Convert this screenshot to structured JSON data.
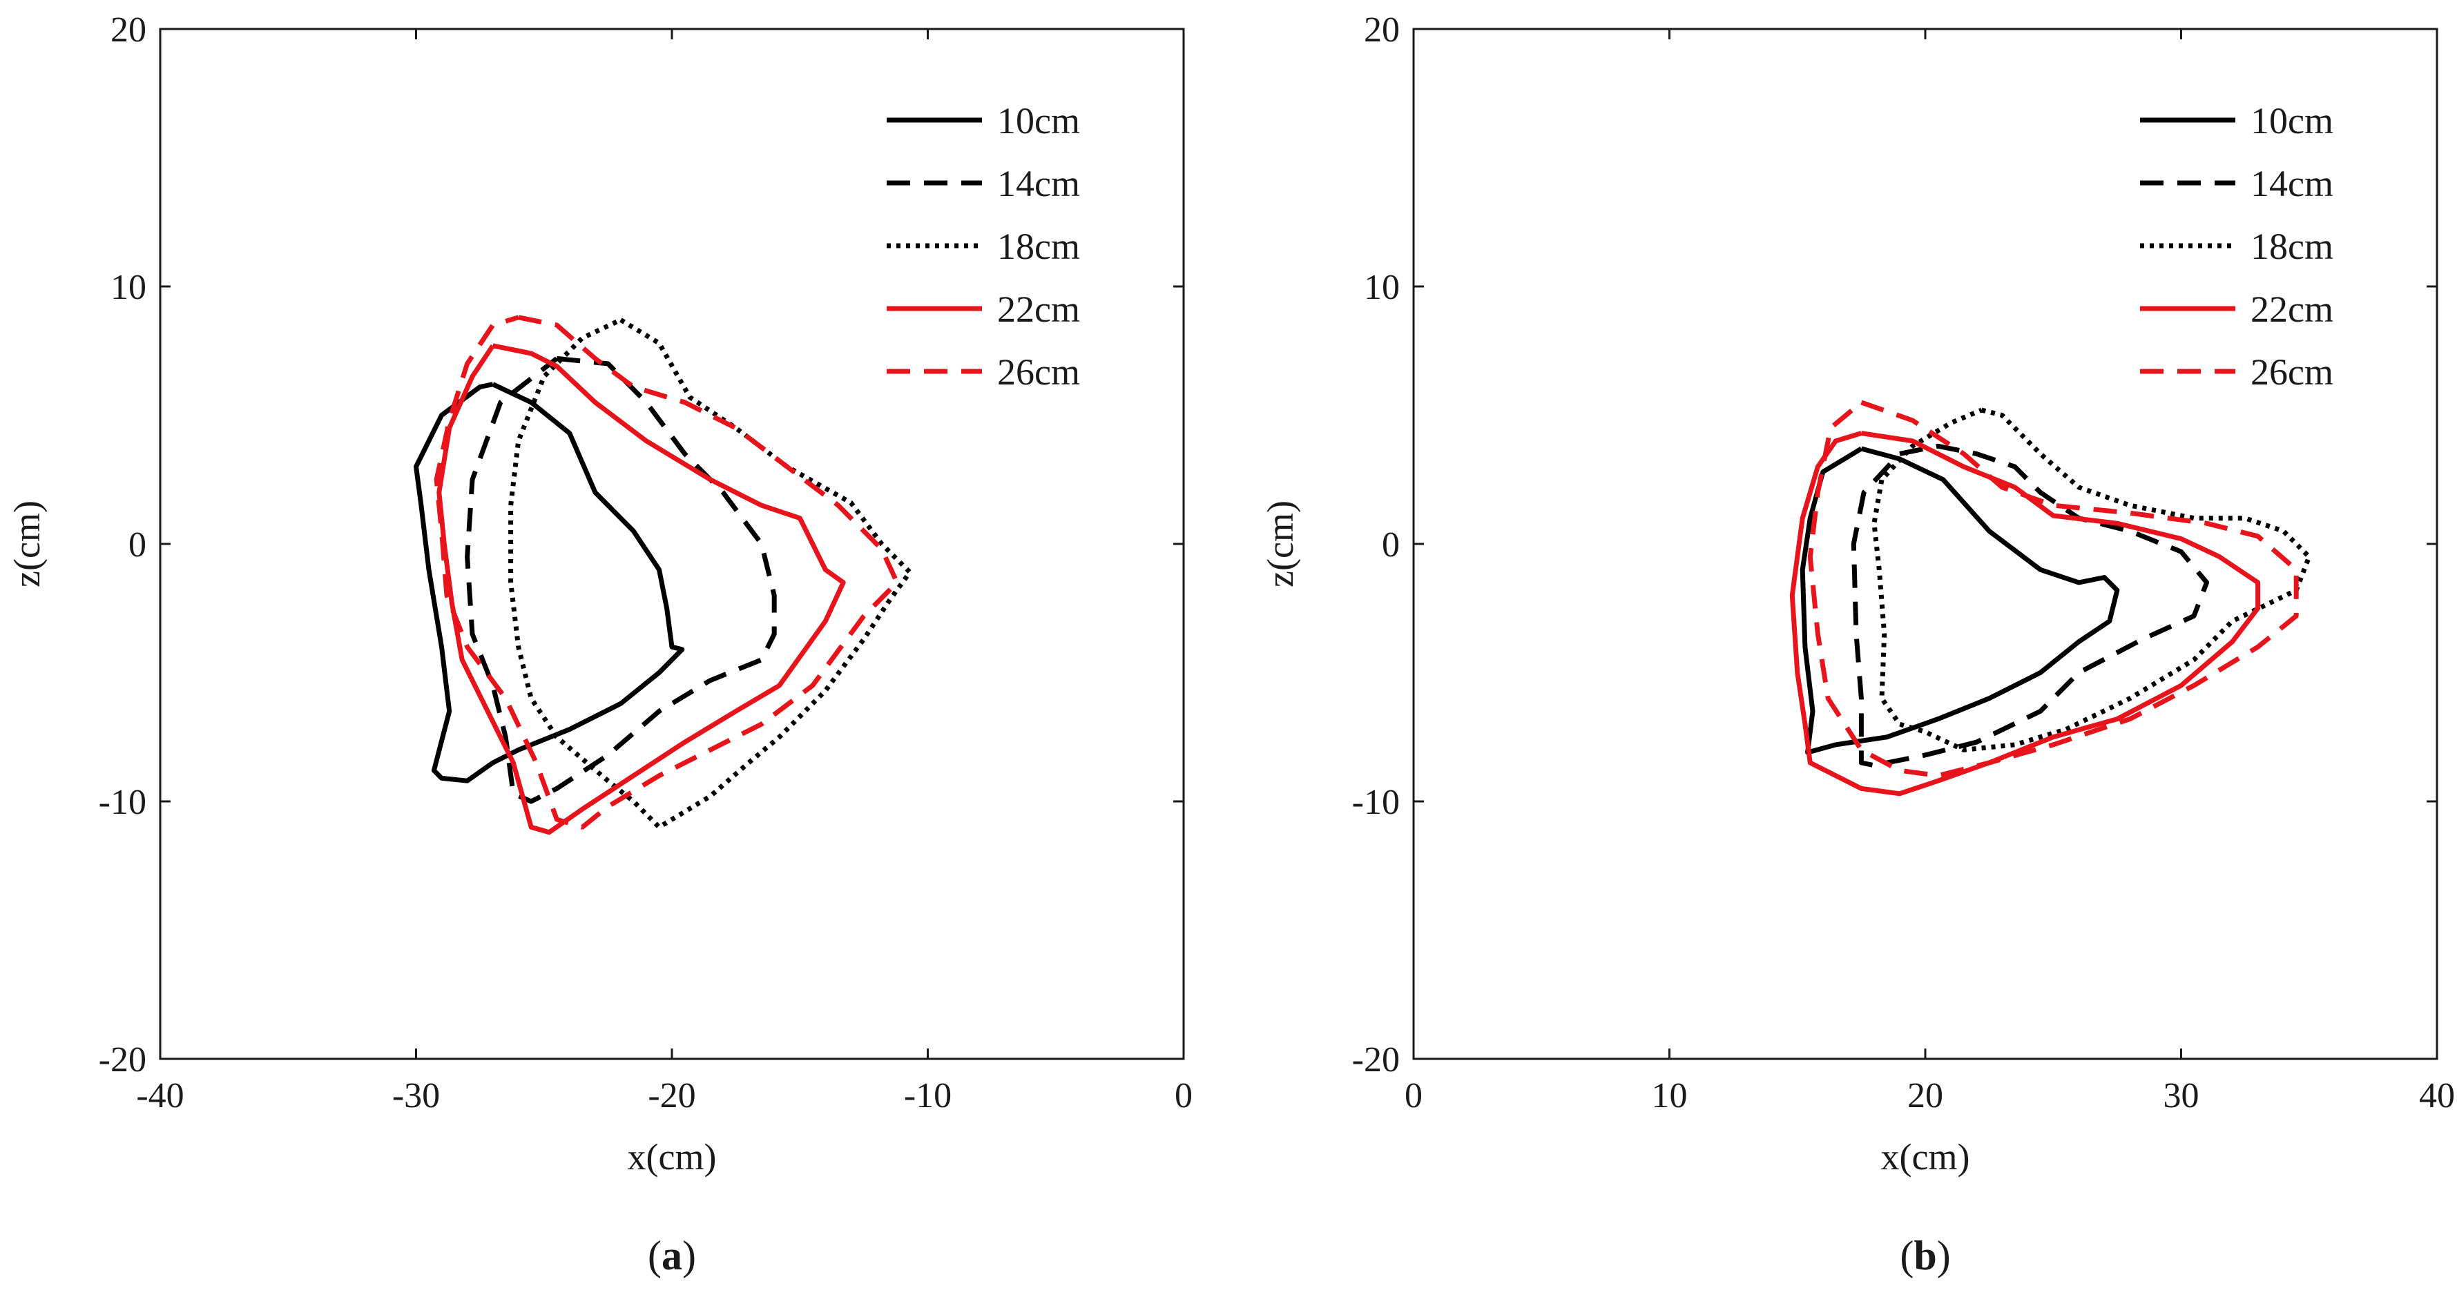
{
  "chart_data": [
    {
      "type": "line",
      "panel_label": {
        "open": "(",
        "letter": "a",
        "close": ")"
      },
      "xlabel": "x(cm)",
      "ylabel": "z(cm)",
      "xlim": [
        -40,
        0
      ],
      "ylim": [
        -20,
        20
      ],
      "xticks": [
        -40,
        -30,
        -20,
        -10,
        0
      ],
      "yticks": [
        -20,
        -10,
        0,
        10,
        20
      ],
      "grid": false,
      "legend_position": "top-right",
      "series": [
        {
          "name": "10cm",
          "color": "#000000",
          "dash": "solid",
          "points": [
            [
              -27,
              6.2
            ],
            [
              -25.5,
              5.5
            ],
            [
              -24,
              4.3
            ],
            [
              -23,
              2
            ],
            [
              -21.5,
              0.5
            ],
            [
              -20.5,
              -1
            ],
            [
              -20.2,
              -2.5
            ],
            [
              -20,
              -4
            ],
            [
              -19.6,
              -4.1
            ],
            [
              -20.5,
              -5
            ],
            [
              -22,
              -6.2
            ],
            [
              -24,
              -7.2
            ],
            [
              -26,
              -8
            ],
            [
              -27,
              -8.5
            ],
            [
              -28,
              -9.2
            ],
            [
              -29,
              -9.1
            ],
            [
              -29.3,
              -8.8
            ],
            [
              -28.7,
              -6.5
            ],
            [
              -29,
              -4
            ],
            [
              -29.5,
              -1
            ],
            [
              -29.8,
              1.5
            ],
            [
              -30,
              3
            ],
            [
              -29,
              5
            ],
            [
              -27.5,
              6.1
            ],
            [
              -27,
              6.2
            ]
          ]
        },
        {
          "name": "14cm",
          "color": "#000000",
          "dash": "dash",
          "points": [
            [
              -24.5,
              7.2
            ],
            [
              -22.5,
              7
            ],
            [
              -21,
              5.5
            ],
            [
              -19.5,
              3.5
            ],
            [
              -18,
              2
            ],
            [
              -16.5,
              0
            ],
            [
              -16,
              -2
            ],
            [
              -16,
              -3.5
            ],
            [
              -16.5,
              -4.5
            ],
            [
              -18.5,
              -5.3
            ],
            [
              -20.5,
              -6.5
            ],
            [
              -22.5,
              -8.2
            ],
            [
              -24.5,
              -9.5
            ],
            [
              -25.5,
              -10
            ],
            [
              -26.2,
              -9.7
            ],
            [
              -26.5,
              -7.5
            ],
            [
              -27,
              -5.5
            ],
            [
              -27.8,
              -3.5
            ],
            [
              -28,
              -0.5
            ],
            [
              -27.8,
              2.5
            ],
            [
              -26.7,
              5.5
            ],
            [
              -24.5,
              7.2
            ]
          ]
        },
        {
          "name": "18cm",
          "color": "#000000",
          "dash": "dot",
          "points": [
            [
              -22,
              8.7
            ],
            [
              -20.5,
              7.8
            ],
            [
              -19.3,
              5.7
            ],
            [
              -17.5,
              4.5
            ],
            [
              -15.5,
              3
            ],
            [
              -13,
              1.6
            ],
            [
              -11.8,
              0
            ],
            [
              -10.7,
              -1.1
            ],
            [
              -11.5,
              -2.2
            ],
            [
              -12.5,
              -3.7
            ],
            [
              -14,
              -5.7
            ],
            [
              -15.8,
              -7.5
            ],
            [
              -17,
              -8.5
            ],
            [
              -18.5,
              -9.8
            ],
            [
              -20.5,
              -11
            ],
            [
              -21.5,
              -10
            ],
            [
              -22.5,
              -9.2
            ],
            [
              -24.5,
              -7.5
            ],
            [
              -25.5,
              -6
            ],
            [
              -26,
              -4
            ],
            [
              -26.3,
              -1.5
            ],
            [
              -26.3,
              1.5
            ],
            [
              -26,
              4
            ],
            [
              -25,
              6.5
            ],
            [
              -23.5,
              8
            ],
            [
              -22,
              8.7
            ]
          ]
        },
        {
          "name": "22cm",
          "color": "#e8141c",
          "dash": "solid",
          "points": [
            [
              -27,
              7.7
            ],
            [
              -25.5,
              7.4
            ],
            [
              -24.5,
              6.9
            ],
            [
              -23,
              5.5
            ],
            [
              -21,
              4
            ],
            [
              -18.5,
              2.5
            ],
            [
              -16.5,
              1.5
            ],
            [
              -15,
              1
            ],
            [
              -14,
              -1
            ],
            [
              -13.3,
              -1.5
            ],
            [
              -14,
              -3
            ],
            [
              -15.8,
              -5.5
            ],
            [
              -17.5,
              -6.5
            ],
            [
              -19.5,
              -7.7
            ],
            [
              -21.5,
              -9
            ],
            [
              -23.5,
              -10.3
            ],
            [
              -24.8,
              -11.2
            ],
            [
              -25.5,
              -11
            ],
            [
              -26.2,
              -8.5
            ],
            [
              -27.2,
              -6.5
            ],
            [
              -28.2,
              -4.5
            ],
            [
              -28.6,
              -2.3
            ],
            [
              -28.9,
              0
            ],
            [
              -29.1,
              2
            ],
            [
              -28.7,
              4.5
            ],
            [
              -27.8,
              6.5
            ],
            [
              -27,
              7.7
            ]
          ]
        },
        {
          "name": "26cm",
          "color": "#e8141c",
          "dash": "dash",
          "points": [
            [
              -26,
              8.8
            ],
            [
              -24.5,
              8.5
            ],
            [
              -23,
              7.2
            ],
            [
              -21.5,
              6.1
            ],
            [
              -19.5,
              5.5
            ],
            [
              -17.5,
              4.5
            ],
            [
              -15.5,
              3
            ],
            [
              -13.5,
              1.5
            ],
            [
              -11.8,
              -0.2
            ],
            [
              -11.2,
              -1.5
            ],
            [
              -12.5,
              -2.8
            ],
            [
              -14.5,
              -5.5
            ],
            [
              -16.5,
              -7
            ],
            [
              -18.5,
              -8
            ],
            [
              -20.5,
              -9
            ],
            [
              -22.5,
              -10.2
            ],
            [
              -23.5,
              -11
            ],
            [
              -24.5,
              -10.7
            ],
            [
              -25.3,
              -8.5
            ],
            [
              -26.5,
              -6
            ],
            [
              -28,
              -4
            ],
            [
              -28.8,
              -2
            ],
            [
              -29,
              0.5
            ],
            [
              -29.2,
              2.5
            ],
            [
              -28.7,
              4.8
            ],
            [
              -28,
              7
            ],
            [
              -27,
              8.5
            ],
            [
              -26,
              8.8
            ]
          ]
        }
      ]
    },
    {
      "type": "line",
      "panel_label": {
        "open": "(",
        "letter": "b",
        "close": ")"
      },
      "xlabel": "x(cm)",
      "ylabel": "z(cm)",
      "xlim": [
        0,
        40
      ],
      "ylim": [
        -20,
        20
      ],
      "xticks": [
        0,
        10,
        20,
        30,
        40
      ],
      "yticks": [
        -20,
        -10,
        0,
        10,
        20
      ],
      "grid": false,
      "legend_position": "top-right",
      "series": [
        {
          "name": "10cm",
          "color": "#000000",
          "dash": "solid",
          "points": [
            [
              17.5,
              3.7
            ],
            [
              19,
              3.3
            ],
            [
              20.7,
              2.5
            ],
            [
              22.5,
              0.5
            ],
            [
              24.5,
              -1
            ],
            [
              26,
              -1.5
            ],
            [
              27,
              -1.3
            ],
            [
              27.5,
              -1.8
            ],
            [
              27.2,
              -3
            ],
            [
              26,
              -3.8
            ],
            [
              24.5,
              -5
            ],
            [
              22.5,
              -6
            ],
            [
              20.5,
              -6.8
            ],
            [
              18.5,
              -7.5
            ],
            [
              16.5,
              -7.8
            ],
            [
              15.4,
              -8.1
            ],
            [
              15.6,
              -6.5
            ],
            [
              15.3,
              -4
            ],
            [
              15.2,
              -1
            ],
            [
              15.5,
              1
            ],
            [
              16,
              2.8
            ],
            [
              17.5,
              3.7
            ]
          ]
        },
        {
          "name": "14cm",
          "color": "#000000",
          "dash": "dash",
          "points": [
            [
              19,
              3.5
            ],
            [
              20.5,
              3.8
            ],
            [
              22,
              3.5
            ],
            [
              23.5,
              3
            ],
            [
              24.5,
              2
            ],
            [
              26,
              1
            ],
            [
              28,
              0.5
            ],
            [
              30,
              -0.3
            ],
            [
              31,
              -1.5
            ],
            [
              30.5,
              -2.8
            ],
            [
              28.5,
              -3.7
            ],
            [
              26,
              -5
            ],
            [
              24.5,
              -6.5
            ],
            [
              22,
              -7.7
            ],
            [
              20,
              -8.2
            ],
            [
              18,
              -8.6
            ],
            [
              17.5,
              -8.5
            ],
            [
              17.5,
              -6
            ],
            [
              17.3,
              -3.5
            ],
            [
              17.2,
              0
            ],
            [
              17.6,
              2
            ],
            [
              19,
              3.5
            ]
          ]
        },
        {
          "name": "18cm",
          "color": "#000000",
          "dash": "dot",
          "points": [
            [
              22.2,
              5.2
            ],
            [
              23,
              5
            ],
            [
              24.5,
              3.5
            ],
            [
              26,
              2.2
            ],
            [
              28,
              1.5
            ],
            [
              30.5,
              1
            ],
            [
              32.5,
              1
            ],
            [
              34,
              0.5
            ],
            [
              35,
              -0.5
            ],
            [
              34.5,
              -1.8
            ],
            [
              32,
              -3
            ],
            [
              30.5,
              -4.5
            ],
            [
              28,
              -6
            ],
            [
              25.5,
              -7.2
            ],
            [
              23.5,
              -7.8
            ],
            [
              21.5,
              -8
            ],
            [
              20,
              -7.3
            ],
            [
              19,
              -7
            ],
            [
              18.3,
              -6
            ],
            [
              18.4,
              -3.5
            ],
            [
              18.2,
              -1
            ],
            [
              18,
              0.8
            ],
            [
              18.3,
              2.5
            ],
            [
              19.5,
              3.8
            ],
            [
              21,
              4.7
            ],
            [
              22.2,
              5.2
            ]
          ]
        },
        {
          "name": "22cm",
          "color": "#e8141c",
          "dash": "solid",
          "points": [
            [
              17.5,
              4.3
            ],
            [
              19.5,
              4
            ],
            [
              21.5,
              3
            ],
            [
              23.5,
              2.2
            ],
            [
              25,
              1.1
            ],
            [
              27.5,
              0.8
            ],
            [
              30,
              0.2
            ],
            [
              31.5,
              -0.5
            ],
            [
              33,
              -1.5
            ],
            [
              33,
              -2.5
            ],
            [
              32,
              -3.8
            ],
            [
              30,
              -5.5
            ],
            [
              27.5,
              -6.8
            ],
            [
              25,
              -7.5
            ],
            [
              22.5,
              -8.5
            ],
            [
              20.5,
              -9.2
            ],
            [
              19,
              -9.7
            ],
            [
              17.5,
              -9.5
            ],
            [
              15.5,
              -8.5
            ],
            [
              15.3,
              -7
            ],
            [
              15,
              -5
            ],
            [
              14.8,
              -2
            ],
            [
              15.2,
              1
            ],
            [
              15.8,
              3
            ],
            [
              16.5,
              4
            ],
            [
              17.5,
              4.3
            ]
          ]
        },
        {
          "name": "26cm",
          "color": "#e8141c",
          "dash": "dash",
          "points": [
            [
              17.5,
              5.5
            ],
            [
              19.5,
              4.8
            ],
            [
              21.5,
              3.5
            ],
            [
              23,
              2.2
            ],
            [
              25,
              1.5
            ],
            [
              28,
              1.2
            ],
            [
              31,
              0.8
            ],
            [
              33,
              0.3
            ],
            [
              34.5,
              -1
            ],
            [
              34.5,
              -2.8
            ],
            [
              33,
              -4
            ],
            [
              30.5,
              -5.5
            ],
            [
              28,
              -6.8
            ],
            [
              25,
              -7.8
            ],
            [
              22.5,
              -8.5
            ],
            [
              20.5,
              -9
            ],
            [
              19,
              -8.8
            ],
            [
              17.5,
              -8
            ],
            [
              16.2,
              -6
            ],
            [
              15.8,
              -3.5
            ],
            [
              15.5,
              -0.5
            ],
            [
              15.8,
              2
            ],
            [
              16.3,
              4.5
            ],
            [
              17.5,
              5.5
            ]
          ]
        }
      ]
    }
  ]
}
